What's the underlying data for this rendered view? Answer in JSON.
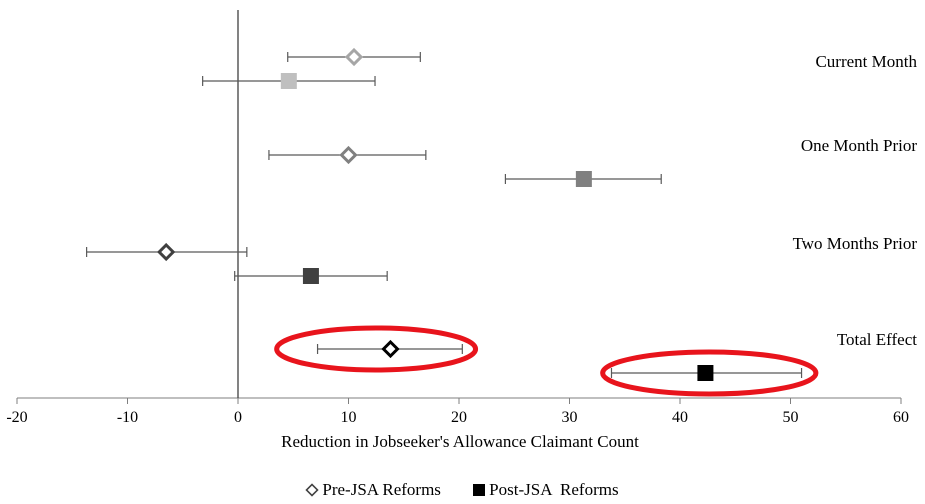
{
  "chart_data": {
    "type": "scatter",
    "xlabel": "Reduction in Jobseeker's Allowance Claimant Count",
    "xlim": [
      -20,
      60
    ],
    "xticks": [
      -20,
      -10,
      0,
      10,
      20,
      30,
      40,
      50,
      60
    ],
    "groups": [
      "Current Month",
      "One Month Prior",
      "Two Months Prior",
      "Total Effect"
    ],
    "legend": [
      {
        "label": "Pre-JSA Reforms",
        "marker": "diamond"
      },
      {
        "label": "Post-JSA  Reforms",
        "marker": "square"
      }
    ],
    "series": [
      {
        "name": "Pre-JSA Reforms",
        "marker": "diamond",
        "points": [
          {
            "group": "Current Month",
            "value": 10.5,
            "low": 4.5,
            "high": 16.5,
            "color": "#a6a6a6"
          },
          {
            "group": "One Month Prior",
            "value": 10.0,
            "low": 2.8,
            "high": 17.0,
            "color": "#808080"
          },
          {
            "group": "Two Months Prior",
            "value": -6.5,
            "low": -13.7,
            "high": 0.8,
            "color": "#404040"
          },
          {
            "group": "Total Effect",
            "value": 13.8,
            "low": 7.2,
            "high": 20.3,
            "color": "#000000"
          }
        ]
      },
      {
        "name": "Post-JSA  Reforms",
        "marker": "square",
        "points": [
          {
            "group": "Current Month",
            "value": 4.6,
            "low": -3.2,
            "high": 12.4,
            "color": "#bfbfbf"
          },
          {
            "group": "One Month Prior",
            "value": 31.3,
            "low": 24.2,
            "high": 38.3,
            "color": "#808080"
          },
          {
            "group": "Two Months Prior",
            "value": 6.6,
            "low": -0.3,
            "high": 13.5,
            "color": "#404040"
          },
          {
            "group": "Total Effect",
            "value": 42.3,
            "low": 33.8,
            "high": 51.0,
            "color": "#000000"
          }
        ]
      }
    ],
    "highlights": [
      {
        "group": "Total Effect",
        "series": "Pre-JSA Reforms",
        "from": 3.5,
        "to": 21.5,
        "color": "#e8141c"
      },
      {
        "group": "Total Effect",
        "series": "Post-JSA  Reforms",
        "from": 33.0,
        "to": 52.3,
        "color": "#e8141c"
      }
    ],
    "grid": false,
    "legend_position": "bottom"
  }
}
